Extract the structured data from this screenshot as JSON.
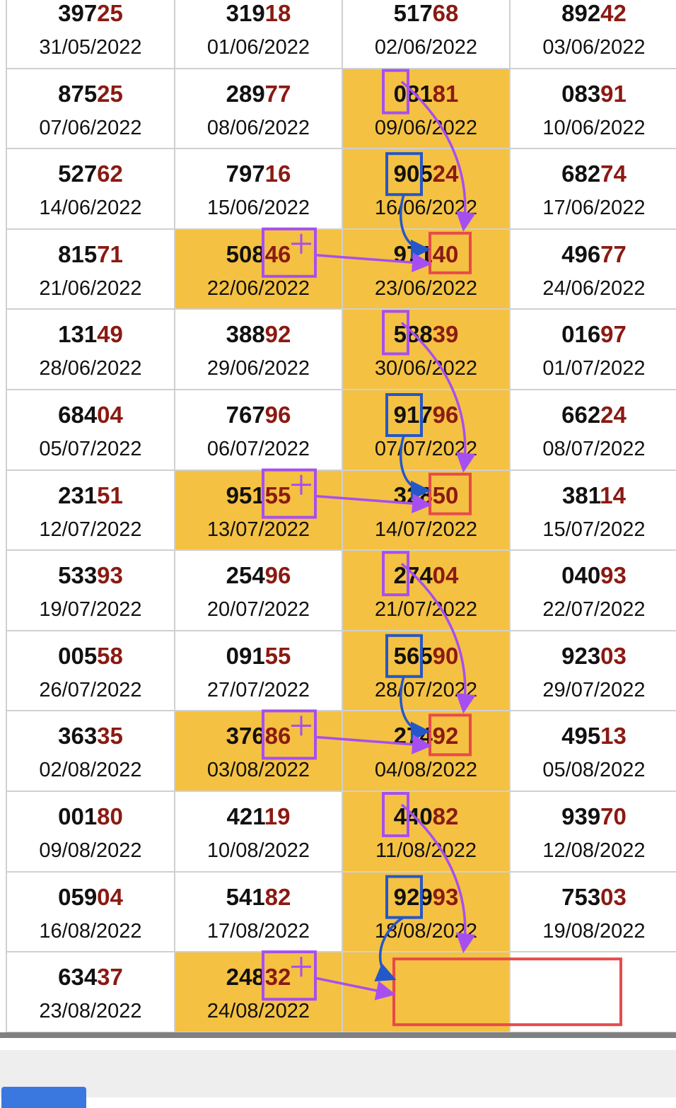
{
  "colors": {
    "highlight": "#f4c142",
    "tail_digits": "#8b1a12",
    "annotation_purple": "#a64ff0",
    "annotation_blue": "#2457c9",
    "annotation_red": "#e84a4a"
  },
  "rows": [
    [
      {
        "n": "39725",
        "d": "31/05/2022"
      },
      {
        "n": "31918",
        "d": "01/06/2022"
      },
      {
        "n": "51768",
        "d": "02/06/2022"
      },
      {
        "n": "89242",
        "d": "03/06/2022"
      }
    ],
    [
      {
        "n": "87525",
        "d": "07/06/2022"
      },
      {
        "n": "28977",
        "d": "08/06/2022"
      },
      {
        "n": "08181",
        "d": "09/06/2022",
        "hl": true
      },
      {
        "n": "08391",
        "d": "10/06/2022"
      }
    ],
    [
      {
        "n": "52762",
        "d": "14/06/2022"
      },
      {
        "n": "79716",
        "d": "15/06/2022"
      },
      {
        "n": "90524",
        "d": "16/06/2022",
        "hl": true
      },
      {
        "n": "68274",
        "d": "17/06/2022"
      }
    ],
    [
      {
        "n": "81571",
        "d": "21/06/2022"
      },
      {
        "n": "50846",
        "d": "22/06/2022",
        "hl": true
      },
      {
        "n": "97140",
        "d": "23/06/2022",
        "hl": true
      },
      {
        "n": "49677",
        "d": "24/06/2022"
      }
    ],
    [
      {
        "n": "13149",
        "d": "28/06/2022"
      },
      {
        "n": "38892",
        "d": "29/06/2022"
      },
      {
        "n": "58839",
        "d": "30/06/2022",
        "hl": true
      },
      {
        "n": "01697",
        "d": "01/07/2022"
      }
    ],
    [
      {
        "n": "68404",
        "d": "05/07/2022"
      },
      {
        "n": "76796",
        "d": "06/07/2022"
      },
      {
        "n": "91796",
        "d": "07/07/2022",
        "hl": true
      },
      {
        "n": "66224",
        "d": "08/07/2022"
      }
    ],
    [
      {
        "n": "23151",
        "d": "12/07/2022"
      },
      {
        "n": "95155",
        "d": "13/07/2022",
        "hl": true
      },
      {
        "n": "32850",
        "d": "14/07/2022",
        "hl": true
      },
      {
        "n": "38114",
        "d": "15/07/2022"
      }
    ],
    [
      {
        "n": "53393",
        "d": "19/07/2022"
      },
      {
        "n": "25496",
        "d": "20/07/2022"
      },
      {
        "n": "27404",
        "d": "21/07/2022",
        "hl": true
      },
      {
        "n": "04093",
        "d": "22/07/2022"
      }
    ],
    [
      {
        "n": "00558",
        "d": "26/07/2022"
      },
      {
        "n": "09155",
        "d": "27/07/2022"
      },
      {
        "n": "56590",
        "d": "28/07/2022",
        "hl": true
      },
      {
        "n": "92303",
        "d": "29/07/2022"
      }
    ],
    [
      {
        "n": "36335",
        "d": "02/08/2022"
      },
      {
        "n": "37686",
        "d": "03/08/2022",
        "hl": true
      },
      {
        "n": "27492",
        "d": "04/08/2022",
        "hl": true
      },
      {
        "n": "49513",
        "d": "05/08/2022"
      }
    ],
    [
      {
        "n": "00180",
        "d": "09/08/2022"
      },
      {
        "n": "42119",
        "d": "10/08/2022"
      },
      {
        "n": "44082",
        "d": "11/08/2022",
        "hl": true
      },
      {
        "n": "93970",
        "d": "12/08/2022"
      }
    ],
    [
      {
        "n": "05904",
        "d": "16/08/2022"
      },
      {
        "n": "54182",
        "d": "17/08/2022"
      },
      {
        "n": "92993",
        "d": "18/08/2022",
        "hl": true
      },
      {
        "n": "75303",
        "d": "19/08/2022"
      }
    ],
    [
      {
        "n": "63437",
        "d": "23/08/2022"
      },
      {
        "n": "24832",
        "d": "24/08/2022",
        "hl": true
      },
      {
        "n": "",
        "d": "",
        "hl": true
      },
      {
        "n": "",
        "d": ""
      }
    ]
  ]
}
